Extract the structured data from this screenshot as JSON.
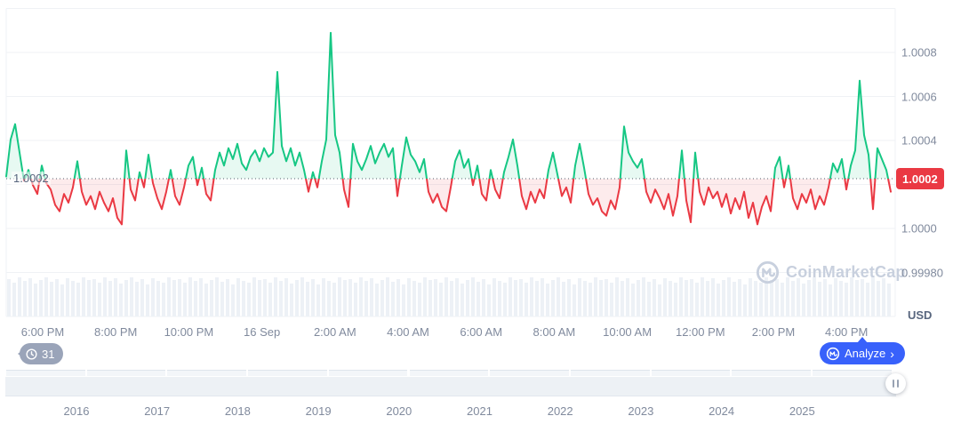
{
  "watermark": {
    "text": "CoinMarketCap"
  },
  "chart": {
    "left_price_label": "1.0002",
    "current_price_label": "1.0002",
    "unit": "USD"
  },
  "history_badge": {
    "count": "31"
  },
  "analyze_button": {
    "label": "Analyze",
    "chevron": "›"
  },
  "navigator": {
    "years": [
      "2016",
      "2017",
      "2018",
      "2019",
      "2020",
      "2021",
      "2022",
      "2023",
      "2024",
      "2025"
    ]
  },
  "chart_data": {
    "type": "line",
    "unit": "USD",
    "baseline_value": 1.0002,
    "current_price": 1.0002,
    "ylim": [
      0.9996,
      1.001
    ],
    "y_ticks": [
      "1.0008",
      "1.0006",
      "1.0004",
      "1.0002",
      "1.0000",
      "0.99980"
    ],
    "gridline_values": [
      1.001,
      1.0008,
      1.0006,
      1.0004,
      1.0002,
      1.0,
      0.9998,
      0.9996
    ],
    "x_tick_labels": [
      "6:00 PM",
      "8:00 PM",
      "10:00 PM",
      "16 Sep",
      "2:00 AM",
      "4:00 AM",
      "6:00 AM",
      "8:00 AM",
      "10:00 AM",
      "12:00 PM",
      "2:00 PM",
      "4:00 PM"
    ],
    "up_color": "#16c784",
    "down_color": "#ea3943",
    "grid_color": "#eff2f5",
    "values": [
      1.00021,
      1.00038,
      1.00045,
      1.00032,
      1.00019,
      1.00024,
      1.00017,
      1.00013,
      1.00026,
      1.00018,
      1.00015,
      1.00008,
      1.00005,
      1.00013,
      1.00009,
      1.00016,
      1.00028,
      1.00014,
      1.00008,
      1.00012,
      1.00006,
      1.00014,
      1.00009,
      1.00005,
      1.00011,
      1.00002,
      0.99999,
      1.00033,
      1.00015,
      1.0001,
      1.00023,
      1.00016,
      1.00031,
      1.00018,
      1.00011,
      1.00006,
      1.00014,
      1.00024,
      1.00012,
      1.00008,
      1.00016,
      1.00026,
      1.0003,
      1.00017,
      1.00025,
      1.00013,
      1.0001,
      1.00024,
      1.00032,
      1.00026,
      1.00034,
      1.00029,
      1.00036,
      1.00027,
      1.00024,
      1.0003,
      1.00033,
      1.00028,
      1.00034,
      1.0003,
      1.00032,
      1.00069,
      1.00035,
      1.00028,
      1.00034,
      1.00026,
      1.00032,
      1.00024,
      1.00014,
      1.00023,
      1.00016,
      1.00028,
      1.00038,
      1.00087,
      1.0004,
      1.00032,
      1.00015,
      1.00007,
      1.00036,
      1.00028,
      1.00024,
      1.00029,
      1.00035,
      1.00027,
      1.00032,
      1.00036,
      1.0003,
      1.00034,
      1.00012,
      1.00026,
      1.00039,
      1.00031,
      1.00028,
      1.00023,
      1.00029,
      1.00014,
      1.00009,
      1.00013,
      1.00007,
      1.00005,
      1.00016,
      1.00028,
      1.00033,
      1.00025,
      1.00029,
      1.00017,
      1.00026,
      1.00013,
      1.0001,
      1.00024,
      1.00015,
      1.00011,
      1.00023,
      1.0003,
      1.00038,
      1.00026,
      1.00012,
      1.00006,
      1.00014,
      1.00009,
      1.00015,
      1.00011,
      1.00024,
      1.00032,
      1.00022,
      1.00012,
      1.00016,
      1.00009,
      1.00026,
      1.00036,
      1.00025,
      1.00013,
      1.00008,
      1.00011,
      1.00005,
      1.00003,
      1.0001,
      1.00006,
      1.00016,
      1.00044,
      1.00032,
      1.00028,
      1.00025,
      1.00029,
      1.00014,
      1.00009,
      1.00015,
      1.00011,
      1.00006,
      1.00013,
      1.00003,
      1.00012,
      1.00033,
      1.0001,
      1.0,
      1.00032,
      1.00014,
      1.00008,
      1.00016,
      1.00011,
      1.00014,
      1.00007,
      1.00013,
      1.00004,
      1.00011,
      1.00006,
      1.00014,
      1.00002,
      1.00009,
      0.99999,
      1.00007,
      1.00012,
      1.00005,
      1.00025,
      1.0003,
      1.00016,
      1.00026,
      1.00011,
      1.00006,
      1.00013,
      1.00009,
      1.00015,
      1.00006,
      1.00012,
      1.00008,
      1.00016,
      1.00027,
      1.00023,
      1.00029,
      1.00015,
      1.00026,
      1.00033,
      1.00065,
      1.0004,
      1.00031,
      1.00006,
      1.00034,
      1.00029,
      1.00024,
      1.00014
    ],
    "volume_bar_heights_pattern": [
      42,
      38,
      44,
      40,
      43,
      37,
      41,
      44,
      39,
      42,
      36,
      43,
      40,
      38,
      44,
      41
    ]
  }
}
